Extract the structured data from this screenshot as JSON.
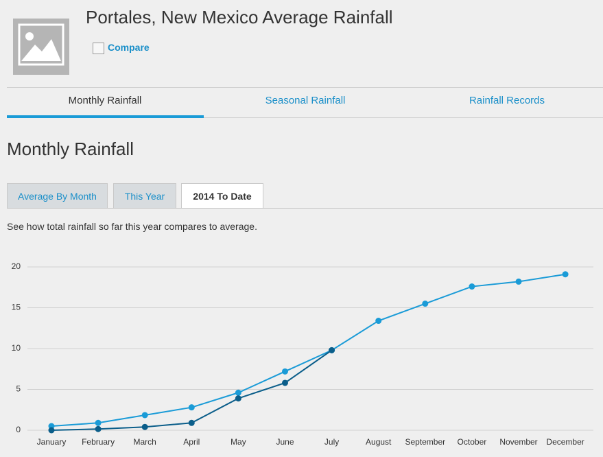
{
  "header": {
    "title": "Portales, New Mexico Average Rainfall",
    "compare": "Compare"
  },
  "tabs": [
    "Monthly Rainfall",
    "Seasonal Rainfall",
    "Rainfall Records"
  ],
  "section_title": "Monthly Rainfall",
  "subtabs": [
    "Average By Month",
    "This Year",
    "2014 To Date"
  ],
  "description": "See how total rainfall so far this year compares to average.",
  "chart_data": {
    "type": "line",
    "categories": [
      "January",
      "February",
      "March",
      "April",
      "May",
      "June",
      "July",
      "August",
      "September",
      "October",
      "November",
      "December"
    ],
    "series": [
      {
        "color": "#1a9bd7",
        "values": [
          0.5,
          0.9,
          1.85,
          2.8,
          4.6,
          7.2,
          9.8,
          13.4,
          15.5,
          17.6,
          18.2,
          19.1
        ]
      },
      {
        "color": "#0b5e8a",
        "values": [
          0,
          0.15,
          0.4,
          0.9,
          3.9,
          5.8,
          9.8,
          null,
          null,
          null,
          null,
          null
        ]
      }
    ],
    "ylim": [
      0,
      20
    ],
    "yticks": [
      0,
      5,
      10,
      15,
      20
    ],
    "grid": true
  }
}
